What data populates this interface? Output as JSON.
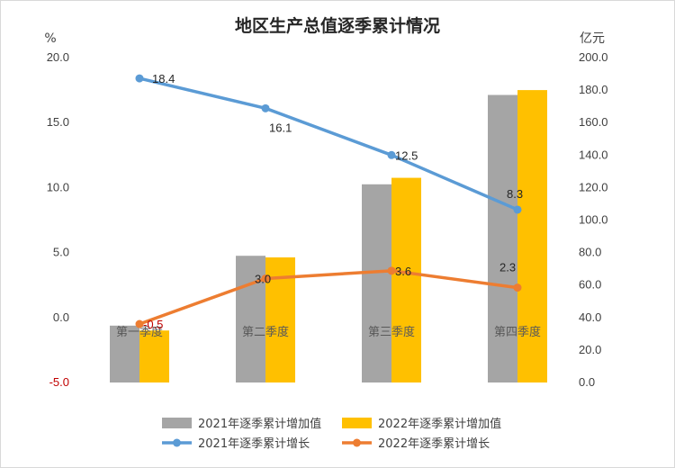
{
  "chart_data": {
    "type": "bar+line",
    "title": "地区生产总值逐季累计情况",
    "left_axis": {
      "unit": "%",
      "ylim": [
        -5,
        20
      ],
      "ticks": [
        "20.0",
        "15.0",
        "10.0",
        "5.0",
        "0.0",
        "-5.0"
      ]
    },
    "right_axis": {
      "unit": "亿元",
      "ylim": [
        0,
        200
      ],
      "ticks": [
        "200.0",
        "180.0",
        "160.0",
        "140.0",
        "120.0",
        "100.0",
        "80.0",
        "60.0",
        "40.0",
        "20.0",
        "0.0"
      ]
    },
    "categories": [
      "第一季度",
      "第二季度",
      "第三季度",
      "第四季度"
    ],
    "bar_series": [
      {
        "name": "2021年逐季累计增加值",
        "color": "#a5a5a5",
        "axis": "right",
        "values": [
          35,
          78,
          122,
          177
        ]
      },
      {
        "name": "2022年逐季累计增加值",
        "color": "#ffc000",
        "axis": "right",
        "values": [
          32,
          77,
          126,
          180
        ]
      }
    ],
    "line_series": [
      {
        "name": "2021年逐季累计增长",
        "color": "#5b9bd5",
        "axis": "left",
        "values": [
          18.4,
          16.1,
          12.5,
          8.3
        ],
        "labels": [
          "18.4",
          "16.1",
          "12.5",
          "8.3"
        ]
      },
      {
        "name": "2022年逐季累计增长",
        "color": "#ed7d31",
        "axis": "left",
        "values": [
          -0.5,
          3.0,
          3.6,
          2.3
        ],
        "labels": [
          "-0.5",
          "3.0",
          "3.6",
          "2.3"
        ]
      }
    ],
    "grid": false,
    "legend_position": "bottom"
  }
}
